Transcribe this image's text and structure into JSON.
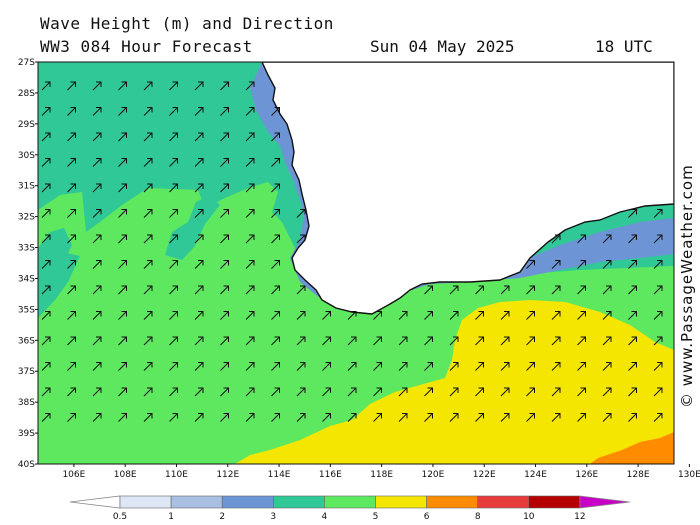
{
  "header": {
    "title": "Wave Height (m) and Direction",
    "subtitle": "WW3 084 Hour Forecast",
    "date": "Sun 04 May 2025",
    "time": "18 UTC"
  },
  "credit": "© www.PassageWeather.com",
  "axes": {
    "latitudes": [
      "27S",
      "28S",
      "29S",
      "30S",
      "31S",
      "32S",
      "33S",
      "34S",
      "35S",
      "36S",
      "37S",
      "38S",
      "39S",
      "40S"
    ],
    "longitudes": [
      "106E",
      "108E",
      "110E",
      "112E",
      "114E",
      "116E",
      "118E",
      "120E",
      "122E",
      "124E",
      "126E",
      "128E",
      "130E"
    ]
  },
  "legend": {
    "ticks": [
      "0.5",
      "1",
      "2",
      "3",
      "4",
      "5",
      "6",
      "8",
      "10",
      "12"
    ],
    "colors": [
      "#ffffff",
      "#dde6f5",
      "#a8bfe2",
      "#6d95d6",
      "#30c896",
      "#5ee860",
      "#f5e600",
      "#ff8c00",
      "#e83c3c",
      "#b40000",
      "#c800c8"
    ]
  },
  "map_colors": {
    "land": "#ffffff",
    "coast": "#111111",
    "band_2_3": "#6d95d6",
    "band_3_4": "#30c896",
    "band_4_5": "#5ee860",
    "band_5_6": "#f5e600",
    "band_6_8": "#ff8c00"
  }
}
